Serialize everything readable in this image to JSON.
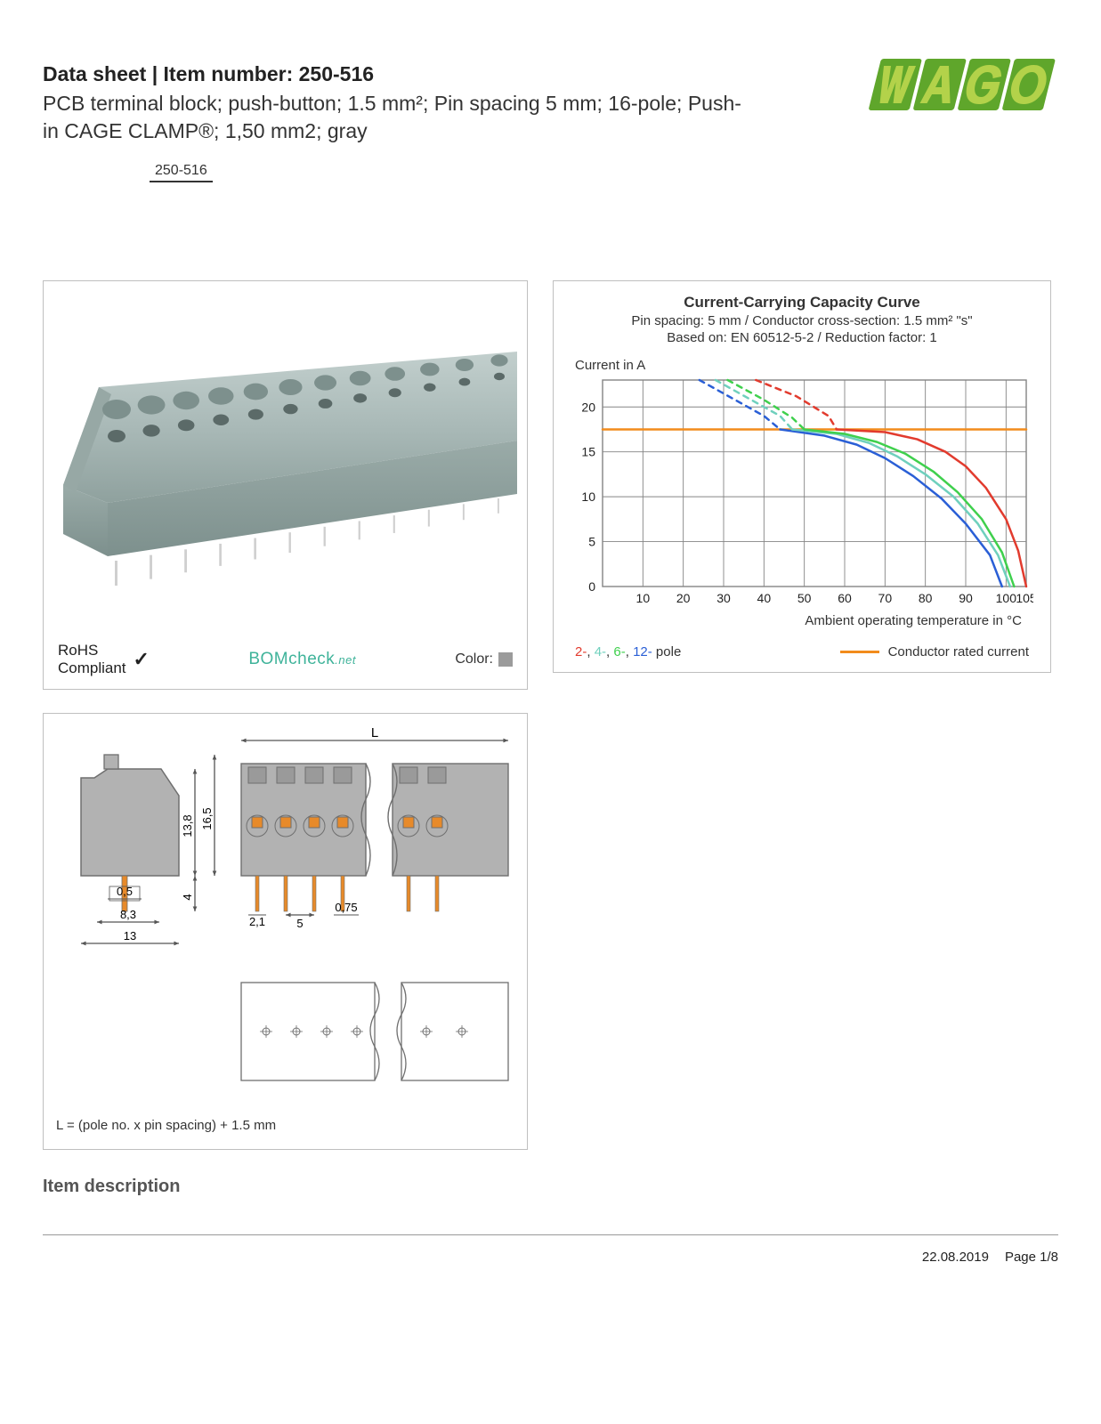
{
  "header": {
    "line1": "Data sheet  |  Item number: 250-516",
    "line2": "PCB terminal block; push-button; 1.5 mm²; Pin spacing 5 mm; 16-pole; Push-in CAGE CLAMP®; 1,50 mm2; gray",
    "part_number": "250-516",
    "logo_text": "WAGO",
    "logo_outer": "#5fa62b",
    "logo_inner": "#b3d24a"
  },
  "product_panel": {
    "block_color": "#a9b9b7",
    "block_shade": "#8fa19e",
    "rohs_line1": "RoHS",
    "rohs_line2": "Compliant",
    "bomcheck_label": "BOMcheck",
    "bomcheck_net": ".net",
    "color_label": "Color:",
    "color_swatch": "#9b9b9b"
  },
  "chart": {
    "title_main": "Current-Carrying Capacity Curve",
    "title_sub1": "Pin spacing: 5 mm / Conductor cross-section: 1.5 mm² \"s\"",
    "title_sub2": "Based on: EN 60512-5-2 / Reduction factor: 1",
    "y_axis_label": "Current in A",
    "x_axis_label": "Ambient operating temperature in °C",
    "x_ticks": [
      10,
      20,
      30,
      40,
      50,
      60,
      70,
      80,
      90,
      100,
      105
    ],
    "y_ticks": [
      0,
      5,
      10,
      15,
      20
    ],
    "xlim": [
      0,
      105
    ],
    "ylim": [
      0,
      23
    ],
    "grid_color": "#848484",
    "background_color": "#ffffff",
    "tick_fontsize": 14,
    "series": {
      "rated": {
        "color": "#f28c1c",
        "width": 2.5,
        "points": [
          [
            0,
            17.5
          ],
          [
            105,
            17.5
          ]
        ]
      },
      "p2": {
        "color": "#e23b2e",
        "width": 2.5,
        "solid": [
          [
            58,
            17.5
          ],
          [
            70,
            17.2
          ],
          [
            78,
            16.4
          ],
          [
            85,
            15.0
          ],
          [
            90,
            13.4
          ],
          [
            95,
            11.0
          ],
          [
            100,
            7.5
          ],
          [
            103,
            4.0
          ],
          [
            105,
            0
          ]
        ],
        "dashed": [
          [
            38,
            23
          ],
          [
            48,
            21.2
          ],
          [
            56,
            19.0
          ],
          [
            58,
            17.5
          ]
        ]
      },
      "p4": {
        "color": "#6fd0bd",
        "width": 2.5,
        "solid": [
          [
            47,
            17.5
          ],
          [
            58,
            17.0
          ],
          [
            66,
            16.0
          ],
          [
            73,
            14.5
          ],
          [
            80,
            12.5
          ],
          [
            87,
            10.0
          ],
          [
            93,
            7.0
          ],
          [
            98,
            3.5
          ],
          [
            101,
            0
          ]
        ],
        "dashed": [
          [
            28,
            23
          ],
          [
            36,
            21.0
          ],
          [
            44,
            19.0
          ],
          [
            47,
            17.5
          ]
        ]
      },
      "p6": {
        "color": "#3fd04d",
        "width": 2.5,
        "solid": [
          [
            50,
            17.5
          ],
          [
            60,
            17.0
          ],
          [
            68,
            16.1
          ],
          [
            75,
            14.8
          ],
          [
            82,
            12.8
          ],
          [
            88,
            10.5
          ],
          [
            94,
            7.5
          ],
          [
            99,
            3.8
          ],
          [
            102,
            0
          ]
        ],
        "dashed": [
          [
            31,
            23
          ],
          [
            40,
            20.8
          ],
          [
            47,
            18.8
          ],
          [
            50,
            17.5
          ]
        ]
      },
      "p12": {
        "color": "#2a5fd6",
        "width": 2.5,
        "solid": [
          [
            44,
            17.5
          ],
          [
            55,
            16.8
          ],
          [
            63,
            15.8
          ],
          [
            70,
            14.3
          ],
          [
            77,
            12.3
          ],
          [
            84,
            9.8
          ],
          [
            90,
            7.0
          ],
          [
            96,
            3.5
          ],
          [
            99,
            0
          ]
        ],
        "dashed": [
          [
            24,
            23
          ],
          [
            32,
            21.0
          ],
          [
            40,
            19.0
          ],
          [
            44,
            17.5
          ]
        ]
      }
    },
    "legend_poles_label": "pole",
    "legend_rated_label": "Conductor rated current"
  },
  "dimensions": {
    "body_color": "#b2b2b2",
    "outline_color": "#6f6f6f",
    "pin_color": "#e78a2a",
    "label_L": "L",
    "label_138": "13,8",
    "label_165": "16,5",
    "label_4": "4",
    "label_05": "0,5",
    "label_83": "8,3",
    "label_13": "13",
    "label_21": "2,1",
    "label_5": "5",
    "label_075": "0,75",
    "footnote": "L = (pole no. x pin spacing) + 1.5 mm"
  },
  "section_heading": "Item description",
  "footer": {
    "date": "22.08.2019",
    "page": "Page 1/8"
  }
}
